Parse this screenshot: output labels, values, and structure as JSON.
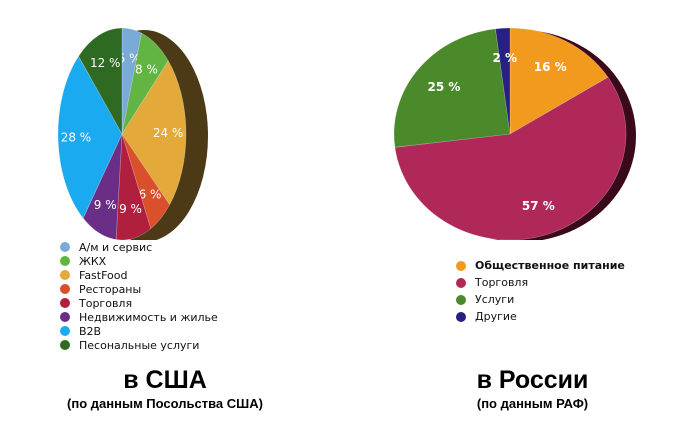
{
  "chart_data": [
    {
      "type": "pie",
      "title": "в США",
      "subtitle": "(по данным Посольства США)",
      "legend_position": "bottom-left",
      "slices": [
        {
          "label": "А/м и сервис",
          "value": 5,
          "value_label": "5 %",
          "color": "#7aaad6"
        },
        {
          "label": "ЖКХ",
          "value": 8,
          "value_label": "8 %",
          "color": "#62b542"
        },
        {
          "label": "FastFood",
          "value": 24,
          "value_label": "24 %",
          "color": "#e3a93a"
        },
        {
          "label": "Рестораны",
          "value": 6,
          "value_label": "6 %",
          "color": "#d9502a"
        },
        {
          "label": "Торговля",
          "value": 9,
          "value_label": "9 %",
          "color": "#b0203e"
        },
        {
          "label": "Недвижимость и жилье",
          "value": 9,
          "value_label": "9 %",
          "color": "#6a2e86"
        },
        {
          "label": "B2B",
          "value": 28,
          "value_label": "28 %",
          "color": "#1aaaf0"
        },
        {
          "label": "Песональные услуги",
          "value": 12,
          "value_label": "12 %",
          "color": "#2f6a22"
        }
      ]
    },
    {
      "type": "pie",
      "title": "в России",
      "subtitle": "(по данным РАФ)",
      "legend_position": "bottom",
      "slices": [
        {
          "label": "Общественное питание",
          "value": 16,
          "value_label": "16 %",
          "color": "#f29a1e"
        },
        {
          "label": "Торговля",
          "value": 57,
          "value_label": "57 %",
          "color": "#b0285a"
        },
        {
          "label": "Услуги",
          "value": 25,
          "value_label": "25 %",
          "color": "#4b8a2a"
        },
        {
          "label": "Другие",
          "value": 2,
          "value_label": "2 %",
          "color": "#262080"
        }
      ]
    }
  ]
}
